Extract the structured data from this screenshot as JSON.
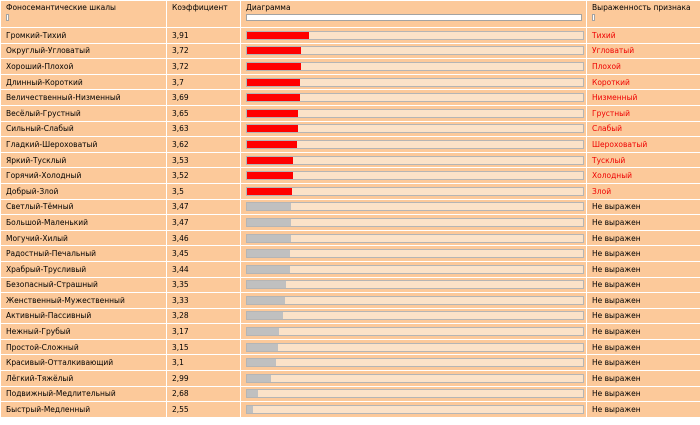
{
  "headers": {
    "scale": "Фоносемантические шкалы",
    "coef": "Коэффициент",
    "chart": "Диаграмма",
    "expr": "Выраженность признака"
  },
  "colors": {
    "expressed": "#ff0000",
    "neutral": "#c0c0c0",
    "track": "#fbe2c8"
  },
  "rows": [
    {
      "scale": "Громкий-Тихий",
      "coef": "3,91",
      "value": 3.91,
      "expressed": true,
      "expr": "Тихий"
    },
    {
      "scale": "Округлый-Угловатый",
      "coef": "3,72",
      "value": 3.72,
      "expressed": true,
      "expr": "Угловатый"
    },
    {
      "scale": "Хороший-Плохой",
      "coef": "3,72",
      "value": 3.72,
      "expressed": true,
      "expr": "Плохой"
    },
    {
      "scale": "Длинный-Короткий",
      "coef": "3,7",
      "value": 3.7,
      "expressed": true,
      "expr": "Короткий"
    },
    {
      "scale": "Величественный-Низменный",
      "coef": "3,69",
      "value": 3.69,
      "expressed": true,
      "expr": "Низменный"
    },
    {
      "scale": "Весёлый-Грустный",
      "coef": "3,65",
      "value": 3.65,
      "expressed": true,
      "expr": "Грустный"
    },
    {
      "scale": "Сильный-Слабый",
      "coef": "3,63",
      "value": 3.63,
      "expressed": true,
      "expr": "Слабый"
    },
    {
      "scale": "Гладкий-Шероховатый",
      "coef": "3,62",
      "value": 3.62,
      "expressed": true,
      "expr": "Шероховатый"
    },
    {
      "scale": "Яркий-Тусклый",
      "coef": "3,53",
      "value": 3.53,
      "expressed": true,
      "expr": "Тусклый"
    },
    {
      "scale": "Горячий-Холодный",
      "coef": "3,52",
      "value": 3.52,
      "expressed": true,
      "expr": "Холодный"
    },
    {
      "scale": "Добрый-Злой",
      "coef": "3,5",
      "value": 3.5,
      "expressed": true,
      "expr": "Злой"
    },
    {
      "scale": "Светлый-Тёмный",
      "coef": "3,47",
      "value": 3.47,
      "expressed": false,
      "expr": "Не выражен"
    },
    {
      "scale": "Большой-Маленький",
      "coef": "3,47",
      "value": 3.47,
      "expressed": false,
      "expr": "Не выражен"
    },
    {
      "scale": "Могучий-Хилый",
      "coef": "3,46",
      "value": 3.46,
      "expressed": false,
      "expr": "Не выражен"
    },
    {
      "scale": "Радостный-Печальный",
      "coef": "3,45",
      "value": 3.45,
      "expressed": false,
      "expr": "Не выражен"
    },
    {
      "scale": "Храбрый-Трусливый",
      "coef": "3,44",
      "value": 3.44,
      "expressed": false,
      "expr": "Не выражен"
    },
    {
      "scale": "Безопасный-Страшный",
      "coef": "3,35",
      "value": 3.35,
      "expressed": false,
      "expr": "Не выражен"
    },
    {
      "scale": "Женственный-Мужественный",
      "coef": "3,33",
      "value": 3.33,
      "expressed": false,
      "expr": "Не выражен"
    },
    {
      "scale": "Активный-Пассивный",
      "coef": "3,28",
      "value": 3.28,
      "expressed": false,
      "expr": "Не выражен"
    },
    {
      "scale": "Нежный-Грубый",
      "coef": "3,17",
      "value": 3.17,
      "expressed": false,
      "expr": "Не выражен"
    },
    {
      "scale": "Простой-Сложный",
      "coef": "3,15",
      "value": 3.15,
      "expressed": false,
      "expr": "Не выражен"
    },
    {
      "scale": "Красивый-Отталкивающий",
      "coef": "3,1",
      "value": 3.1,
      "expressed": false,
      "expr": "Не выражен"
    },
    {
      "scale": "Лёгкий-Тяжёлый",
      "coef": "2,99",
      "value": 2.99,
      "expressed": false,
      "expr": "Не выражен"
    },
    {
      "scale": "Подвижный-Медлительный",
      "coef": "2,68",
      "value": 2.68,
      "expressed": false,
      "expr": "Не выражен"
    },
    {
      "scale": "Быстрый-Медленный",
      "coef": "2,55",
      "value": 2.55,
      "expressed": false,
      "expr": "Не выражен"
    }
  ]
}
